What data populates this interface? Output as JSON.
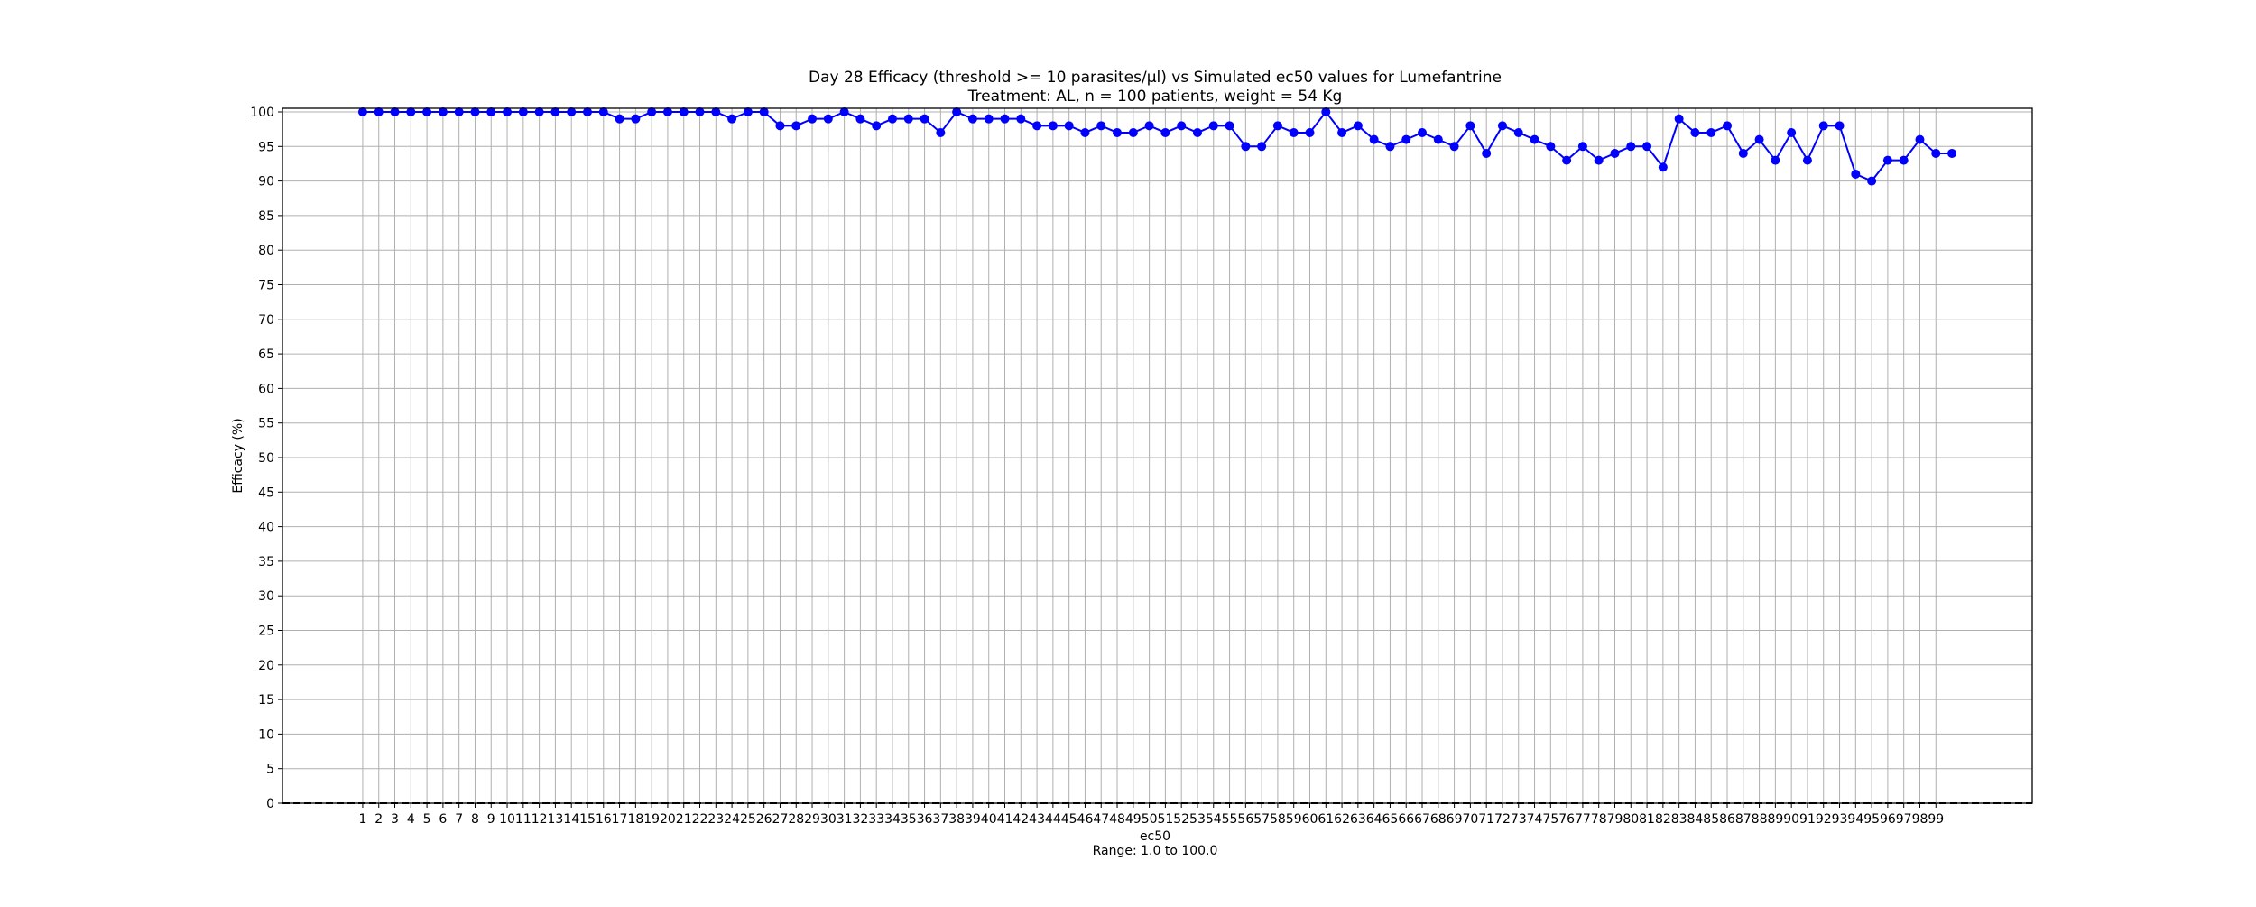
{
  "chart_data": {
    "type": "line",
    "title": "Day 28 Efficacy (threshold >= 10 parasites/µl) vs Simulated ec50 values for Lumefantrine",
    "subtitle": "Treatment: AL, n = 100 patients, weight = 54 Kg",
    "xlabel": "ec50",
    "xlabel_note": "Range: 1.0 to 100.0",
    "ylabel": "Efficacy (%)",
    "ylim": [
      0,
      100
    ],
    "yticks": [
      0,
      5,
      10,
      15,
      20,
      25,
      30,
      35,
      40,
      45,
      50,
      55,
      60,
      65,
      70,
      75,
      80,
      85,
      90,
      95,
      100
    ],
    "xlim": [
      -4,
      105
    ],
    "grid": true,
    "reference_line": {
      "y": 0,
      "style": "dashed",
      "color": "#000000"
    },
    "series": [
      {
        "color": "#0000ff",
        "marker": "circle",
        "x": [
          1,
          2,
          3,
          4,
          5,
          6,
          7,
          8,
          9,
          10,
          11,
          12,
          13,
          14,
          15,
          16,
          17,
          18,
          19,
          20,
          21,
          22,
          23,
          24,
          25,
          26,
          27,
          28,
          29,
          30,
          31,
          32,
          33,
          34,
          35,
          36,
          37,
          38,
          39,
          40,
          41,
          42,
          43,
          44,
          45,
          46,
          47,
          48,
          49,
          50,
          51,
          52,
          53,
          54,
          55,
          56,
          57,
          58,
          59,
          60,
          61,
          62,
          63,
          64,
          65,
          66,
          67,
          68,
          69,
          70,
          71,
          72,
          73,
          74,
          75,
          76,
          77,
          78,
          79,
          80,
          81,
          82,
          83,
          84,
          85,
          86,
          87,
          88,
          89,
          90,
          91,
          92,
          93,
          94,
          95,
          96,
          97,
          98,
          99,
          100
        ],
        "values": [
          100,
          100,
          100,
          100,
          100,
          100,
          100,
          100,
          100,
          100,
          100,
          100,
          100,
          100,
          100,
          100,
          99,
          99,
          100,
          100,
          100,
          100,
          100,
          99,
          100,
          100,
          98,
          98,
          99,
          99,
          100,
          99,
          98,
          99,
          99,
          99,
          97,
          100,
          99,
          99,
          99,
          99,
          98,
          98,
          98,
          97,
          98,
          97,
          97,
          98,
          97,
          98,
          97,
          98,
          98,
          95,
          95,
          98,
          97,
          97,
          100,
          97,
          98,
          96,
          95,
          96,
          97,
          96,
          95,
          98,
          94,
          98,
          97,
          96,
          95,
          93,
          95,
          93,
          94,
          95,
          95,
          92,
          99,
          97,
          97,
          98,
          94,
          96,
          93,
          97,
          93,
          98,
          98,
          91,
          90,
          93,
          93,
          96,
          94,
          94
        ]
      }
    ],
    "xtick_labels": [
      "1",
      "2",
      "3",
      "4",
      "5",
      "6",
      "7",
      "8",
      "9",
      "10",
      "11",
      "12",
      "13",
      "14",
      "15",
      "16",
      "17",
      "18",
      "19",
      "20",
      "21",
      "22",
      "23",
      "24",
      "25",
      "26",
      "27",
      "28",
      "29",
      "30",
      "31",
      "32",
      "33",
      "34",
      "35",
      "36",
      "37",
      "38",
      "39",
      "40",
      "41",
      "42",
      "43",
      "44",
      "45",
      "46",
      "47",
      "48",
      "49",
      "50",
      "51",
      "52",
      "53",
      "54",
      "55",
      "56",
      "57",
      "58",
      "59",
      "60",
      "61",
      "62",
      "63",
      "64",
      "65",
      "66",
      "67",
      "68",
      "69",
      "70",
      "71",
      "72",
      "73",
      "74",
      "75",
      "76",
      "77",
      "78",
      "79",
      "80",
      "81",
      "82",
      "83",
      "84",
      "85",
      "86",
      "87",
      "88",
      "89",
      "90",
      "91",
      "92",
      "93",
      "94",
      "95",
      "96",
      "97",
      "98",
      "99"
    ]
  }
}
